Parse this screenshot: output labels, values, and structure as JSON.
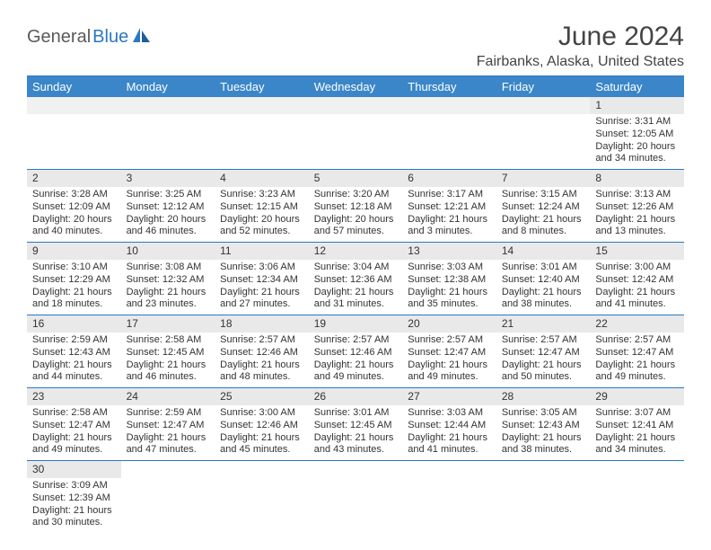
{
  "logo": {
    "text1": "General",
    "text2": "Blue"
  },
  "title": "June 2024",
  "subtitle": "Fairbanks, Alaska, United States",
  "colors": {
    "header_bg": "#3a86c8",
    "header_text": "#ffffff",
    "rule": "#2b78c2",
    "daynum_bg": "#e9e9e9",
    "body_text": "#333333"
  },
  "dayNames": [
    "Sunday",
    "Monday",
    "Tuesday",
    "Wednesday",
    "Thursday",
    "Friday",
    "Saturday"
  ],
  "weeks": [
    [
      null,
      null,
      null,
      null,
      null,
      null,
      {
        "n": "1",
        "sr": "3:31 AM",
        "ss": "12:05 AM",
        "dl": "20 hours and 34 minutes."
      }
    ],
    [
      {
        "n": "2",
        "sr": "3:28 AM",
        "ss": "12:09 AM",
        "dl": "20 hours and 40 minutes."
      },
      {
        "n": "3",
        "sr": "3:25 AM",
        "ss": "12:12 AM",
        "dl": "20 hours and 46 minutes."
      },
      {
        "n": "4",
        "sr": "3:23 AM",
        "ss": "12:15 AM",
        "dl": "20 hours and 52 minutes."
      },
      {
        "n": "5",
        "sr": "3:20 AM",
        "ss": "12:18 AM",
        "dl": "20 hours and 57 minutes."
      },
      {
        "n": "6",
        "sr": "3:17 AM",
        "ss": "12:21 AM",
        "dl": "21 hours and 3 minutes."
      },
      {
        "n": "7",
        "sr": "3:15 AM",
        "ss": "12:24 AM",
        "dl": "21 hours and 8 minutes."
      },
      {
        "n": "8",
        "sr": "3:13 AM",
        "ss": "12:26 AM",
        "dl": "21 hours and 13 minutes."
      }
    ],
    [
      {
        "n": "9",
        "sr": "3:10 AM",
        "ss": "12:29 AM",
        "dl": "21 hours and 18 minutes."
      },
      {
        "n": "10",
        "sr": "3:08 AM",
        "ss": "12:32 AM",
        "dl": "21 hours and 23 minutes."
      },
      {
        "n": "11",
        "sr": "3:06 AM",
        "ss": "12:34 AM",
        "dl": "21 hours and 27 minutes."
      },
      {
        "n": "12",
        "sr": "3:04 AM",
        "ss": "12:36 AM",
        "dl": "21 hours and 31 minutes."
      },
      {
        "n": "13",
        "sr": "3:03 AM",
        "ss": "12:38 AM",
        "dl": "21 hours and 35 minutes."
      },
      {
        "n": "14",
        "sr": "3:01 AM",
        "ss": "12:40 AM",
        "dl": "21 hours and 38 minutes."
      },
      {
        "n": "15",
        "sr": "3:00 AM",
        "ss": "12:42 AM",
        "dl": "21 hours and 41 minutes."
      }
    ],
    [
      {
        "n": "16",
        "sr": "2:59 AM",
        "ss": "12:43 AM",
        "dl": "21 hours and 44 minutes."
      },
      {
        "n": "17",
        "sr": "2:58 AM",
        "ss": "12:45 AM",
        "dl": "21 hours and 46 minutes."
      },
      {
        "n": "18",
        "sr": "2:57 AM",
        "ss": "12:46 AM",
        "dl": "21 hours and 48 minutes."
      },
      {
        "n": "19",
        "sr": "2:57 AM",
        "ss": "12:46 AM",
        "dl": "21 hours and 49 minutes."
      },
      {
        "n": "20",
        "sr": "2:57 AM",
        "ss": "12:47 AM",
        "dl": "21 hours and 49 minutes."
      },
      {
        "n": "21",
        "sr": "2:57 AM",
        "ss": "12:47 AM",
        "dl": "21 hours and 50 minutes."
      },
      {
        "n": "22",
        "sr": "2:57 AM",
        "ss": "12:47 AM",
        "dl": "21 hours and 49 minutes."
      }
    ],
    [
      {
        "n": "23",
        "sr": "2:58 AM",
        "ss": "12:47 AM",
        "dl": "21 hours and 49 minutes."
      },
      {
        "n": "24",
        "sr": "2:59 AM",
        "ss": "12:47 AM",
        "dl": "21 hours and 47 minutes."
      },
      {
        "n": "25",
        "sr": "3:00 AM",
        "ss": "12:46 AM",
        "dl": "21 hours and 45 minutes."
      },
      {
        "n": "26",
        "sr": "3:01 AM",
        "ss": "12:45 AM",
        "dl": "21 hours and 43 minutes."
      },
      {
        "n": "27",
        "sr": "3:03 AM",
        "ss": "12:44 AM",
        "dl": "21 hours and 41 minutes."
      },
      {
        "n": "28",
        "sr": "3:05 AM",
        "ss": "12:43 AM",
        "dl": "21 hours and 38 minutes."
      },
      {
        "n": "29",
        "sr": "3:07 AM",
        "ss": "12:41 AM",
        "dl": "21 hours and 34 minutes."
      }
    ],
    [
      {
        "n": "30",
        "sr": "3:09 AM",
        "ss": "12:39 AM",
        "dl": "21 hours and 30 minutes."
      },
      null,
      null,
      null,
      null,
      null,
      null
    ]
  ],
  "labels": {
    "sunrise": "Sunrise:",
    "sunset": "Sunset:",
    "daylight": "Daylight:"
  }
}
